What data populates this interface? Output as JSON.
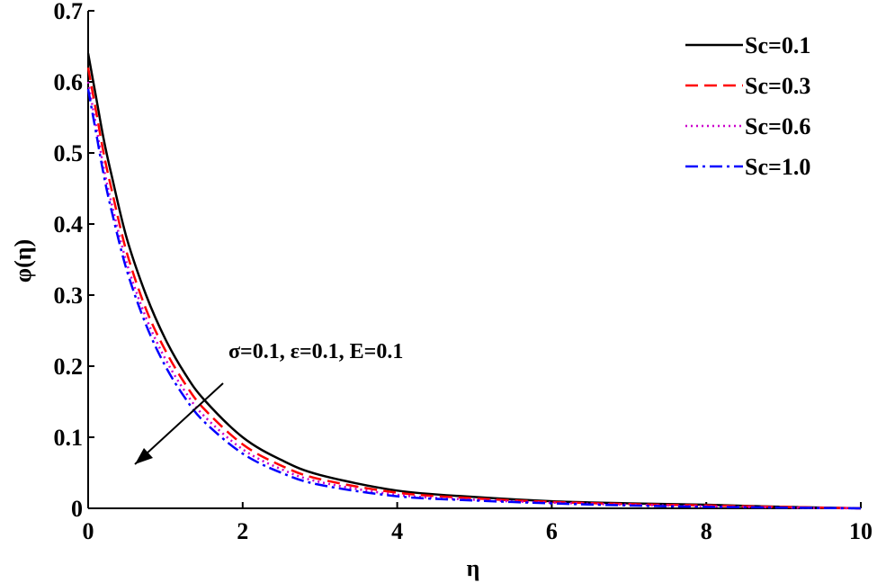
{
  "chart_data": {
    "type": "line",
    "title": "",
    "xlabel": "η",
    "ylabel": "φ(η)",
    "xlim": [
      0,
      10
    ],
    "ylim": [
      0,
      0.7
    ],
    "xticks": [
      "0",
      "2",
      "4",
      "6",
      "8",
      "10"
    ],
    "yticks": [
      "0",
      "0.1",
      "0.2",
      "0.3",
      "0.4",
      "0.5",
      "0.6",
      "0.7"
    ],
    "grid": false,
    "legend_position": "top-right",
    "x": [
      0,
      0.1,
      0.2,
      0.3,
      0.5,
      0.75,
      1,
      1.25,
      1.5,
      2,
      2.5,
      3,
      4,
      5,
      6,
      7,
      8,
      9,
      10
    ],
    "series": [
      {
        "name": "Sc=0.1",
        "color": "#000000",
        "dash": "solid",
        "values": [
          0.64,
          0.58,
          0.52,
          0.47,
          0.38,
          0.3,
          0.238,
          0.19,
          0.153,
          0.1,
          0.068,
          0.047,
          0.025,
          0.016,
          0.01,
          0.007,
          0.005,
          0.002,
          0.0
        ]
      },
      {
        "name": "Sc=0.3",
        "color": "#ff0000",
        "dash": "dashed",
        "values": [
          0.62,
          0.56,
          0.5,
          0.45,
          0.36,
          0.28,
          0.222,
          0.176,
          0.14,
          0.09,
          0.06,
          0.041,
          0.022,
          0.014,
          0.009,
          0.006,
          0.004,
          0.002,
          0.0
        ]
      },
      {
        "name": "Sc=0.6",
        "color": "#cc00cc",
        "dash": "dotted",
        "values": [
          0.6,
          0.54,
          0.48,
          0.43,
          0.345,
          0.268,
          0.21,
          0.165,
          0.13,
          0.083,
          0.055,
          0.037,
          0.019,
          0.012,
          0.008,
          0.005,
          0.003,
          0.001,
          0.0
        ]
      },
      {
        "name": "Sc=1.0",
        "color": "#0000ff",
        "dash": "dashdot",
        "values": [
          0.59,
          0.53,
          0.47,
          0.42,
          0.335,
          0.258,
          0.2,
          0.156,
          0.122,
          0.077,
          0.05,
          0.033,
          0.017,
          0.011,
          0.007,
          0.004,
          0.002,
          0.001,
          0.0
        ]
      }
    ],
    "annotations": [
      {
        "text": "σ=0.1, ε=0.1, E=0.1"
      }
    ]
  }
}
